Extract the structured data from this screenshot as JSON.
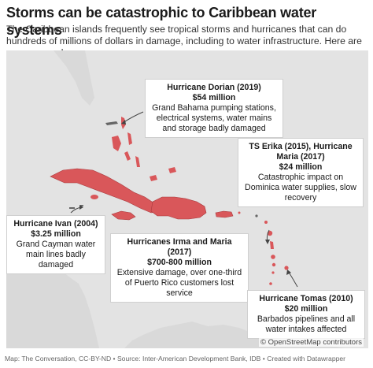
{
  "title": "Storms can be catastrophic to Caribbean water systems",
  "subtitle": "The Caribbean islands frequently see tropical storms and hurricanes that can do hundreds of millions of dollars in damage, including to water infrastructure. Here are some examples.",
  "colors": {
    "sea": "#e3e3e3",
    "land": "#d9d9d9",
    "highlight": "#d9575a",
    "highlight_stroke": "#a83a3d",
    "annotation_line": "#444444"
  },
  "annotations": [
    {
      "storm": "Hurricane Dorian (2019)",
      "cost": "$54 million",
      "description": "Grand Bahama pumping stations, electrical systems, water mains and storage badly damaged"
    },
    {
      "storm": "TS Erika (2015), Hurricane Maria (2017)",
      "cost": "$24 million",
      "description": "Catastrophic impact on Dominica water supplies, slow recovery"
    },
    {
      "storm": "Hurricane Ivan (2004)",
      "cost": "$3.25 million",
      "description": "Grand Cayman water main lines badly damaged"
    },
    {
      "storm": "Hurricanes Irma and Maria (2017)",
      "cost": "$700-800 million",
      "description": "Extensive damage, over one-third of Puerto Rico customers lost service"
    },
    {
      "storm": "Hurricane Tomas (2010)",
      "cost": "$20 million",
      "description": "Barbados pipelines and all water intakes affected"
    }
  ],
  "attribution": "© OpenStreetMap contributors",
  "footer": "Map: The Conversation, CC-BY-ND • Source: Inter-American Development Bank, IDB • Created with Datawrapper"
}
